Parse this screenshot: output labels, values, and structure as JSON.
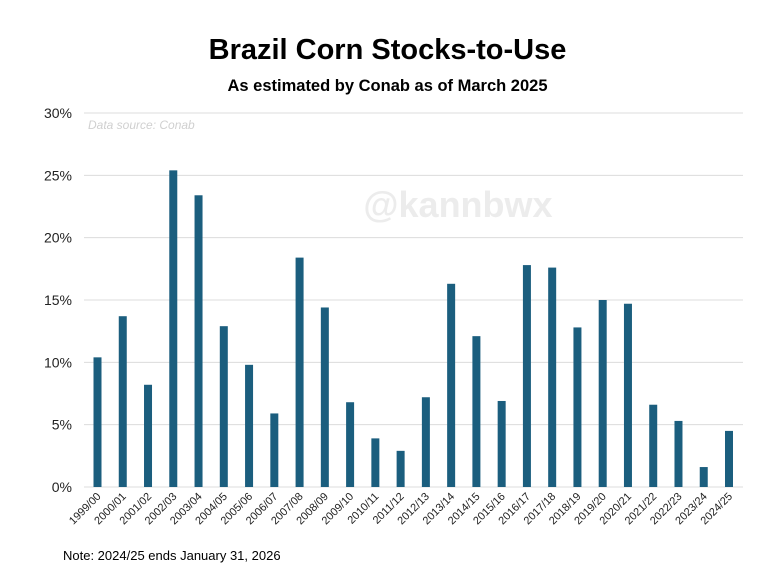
{
  "chart_data": {
    "type": "bar",
    "title": "Brazil Corn Stocks-to-Use",
    "subtitle": "As estimated by Conab as of March 2025",
    "source": "Data source: Conab",
    "watermark": "@kannbwx",
    "note": "Note: 2024/25 ends January 31, 2026",
    "xlabel": "",
    "ylabel": "",
    "ylim": [
      0,
      30
    ],
    "yticks": [
      "0%",
      "5%",
      "10%",
      "15%",
      "20%",
      "25%",
      "30%"
    ],
    "grid": true,
    "bar_color": "#1b5e7e",
    "categories": [
      "1999/00",
      "2000/01",
      "2001/02",
      "2002/03",
      "2003/04",
      "2004/05",
      "2005/06",
      "2006/07",
      "2007/08",
      "2008/09",
      "2009/10",
      "2010/11",
      "2011/12",
      "2012/13",
      "2013/14",
      "2014/15",
      "2015/16",
      "2016/17",
      "2017/18",
      "2018/19",
      "2019/20",
      "2020/21",
      "2021/22",
      "2022/23",
      "2023/24",
      "2024/25"
    ],
    "values": [
      10.4,
      13.7,
      8.2,
      25.4,
      23.4,
      12.9,
      9.8,
      5.9,
      18.4,
      14.4,
      6.8,
      3.9,
      2.9,
      7.2,
      16.3,
      12.1,
      6.9,
      17.8,
      17.6,
      12.8,
      15.0,
      14.7,
      6.6,
      5.3,
      1.6,
      4.5
    ]
  }
}
